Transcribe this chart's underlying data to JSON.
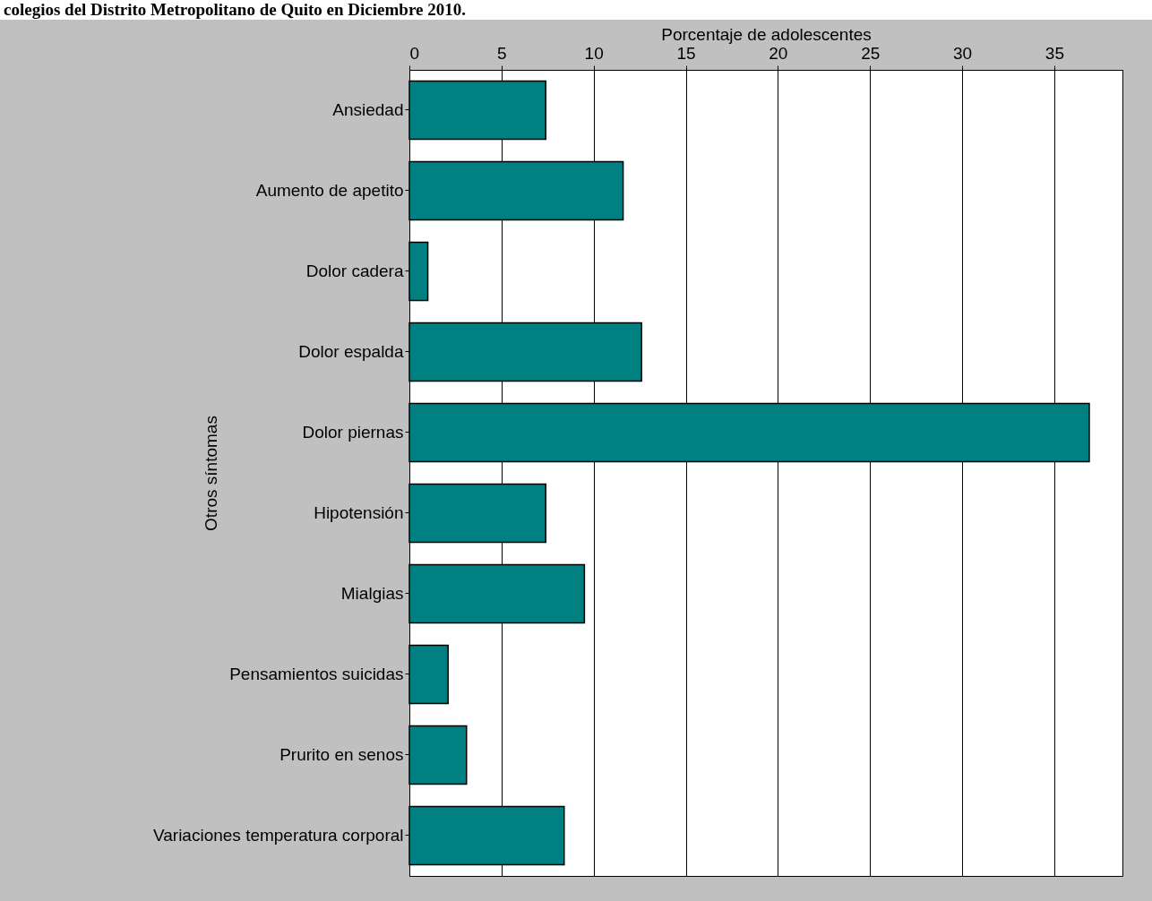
{
  "chart_data": {
    "type": "bar",
    "orientation": "horizontal",
    "title": "colegios del Distrito Metropolitano de Quito en Diciembre 2010.",
    "xlabel": "Porcentaje de adolescentes",
    "ylabel": "Otros síntomas",
    "categories": [
      "Ansiedad",
      "Aumento de apetito",
      "Dolor cadera",
      "Dolor espalda",
      "Dolor piernas",
      "Hipotensión",
      "Mialgias",
      "Pensamientos suicidas",
      "Prurito en senos",
      "Variaciones temperatura corporal"
    ],
    "values": [
      7.4,
      11.6,
      1.0,
      12.6,
      36.9,
      7.4,
      9.5,
      2.1,
      3.1,
      8.4
    ],
    "color": "#008080",
    "xlim": [
      0,
      38.7
    ],
    "xticks": [
      0,
      5,
      10,
      15,
      20,
      25,
      30,
      35
    ],
    "grid": "x"
  }
}
